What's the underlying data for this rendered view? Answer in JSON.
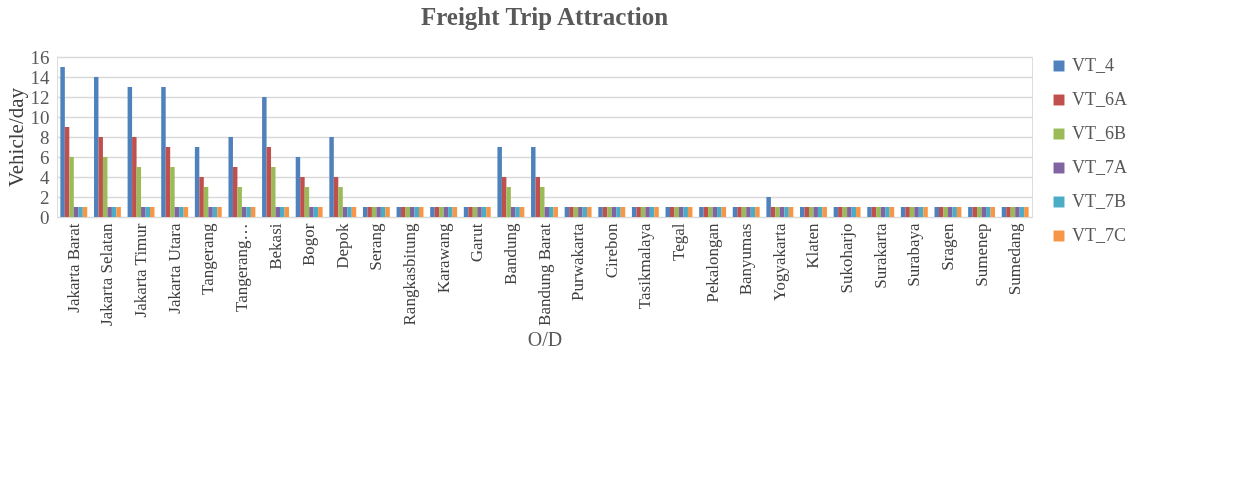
{
  "chart_data": {
    "type": "bar",
    "title": "Freight Trip Attraction",
    "xlabel": "O/D",
    "ylabel": "Vehicle/day",
    "categories": [
      "Jakarta Barat",
      "Jakarta Selatan",
      "Jakarta Timur",
      "Jakarta Utara",
      "Tangerang",
      "Tangerang…",
      "Bekasi",
      "Bogor",
      "Depok",
      "Serang",
      "Rangkasbitung",
      "Karawang",
      "Garut",
      "Bandung",
      "Bandung Barat",
      "Purwakarta",
      "Cirebon",
      "Tasikmalaya",
      "Tegal",
      "Pekalongan",
      "Banyumas",
      "Yogyakarta",
      "Klaten",
      "Sukoharjo",
      "Surakarta",
      "Surabaya",
      "Sragen",
      "Sumenep",
      "Sumedang"
    ],
    "series": [
      {
        "name": "VT_4",
        "color": "#4f81bd",
        "values": [
          15,
          14,
          13,
          13,
          7,
          8,
          12,
          6,
          8,
          1,
          1,
          1,
          1,
          7,
          7,
          1,
          1,
          1,
          1,
          1,
          1,
          2,
          1,
          1,
          1,
          1,
          1,
          1,
          1
        ]
      },
      {
        "name": "VT_6A",
        "color": "#c0504d",
        "values": [
          9,
          8,
          8,
          7,
          4,
          5,
          7,
          4,
          4,
          1,
          1,
          1,
          1,
          4,
          4,
          1,
          1,
          1,
          1,
          1,
          1,
          1,
          1,
          1,
          1,
          1,
          1,
          1,
          1
        ]
      },
      {
        "name": "VT_6B",
        "color": "#9bbb59",
        "values": [
          6,
          6,
          5,
          5,
          3,
          3,
          5,
          3,
          3,
          1,
          1,
          1,
          1,
          3,
          3,
          1,
          1,
          1,
          1,
          1,
          1,
          1,
          1,
          1,
          1,
          1,
          1,
          1,
          1
        ]
      },
      {
        "name": "VT_7A",
        "color": "#8064a2",
        "values": [
          1,
          1,
          1,
          1,
          1,
          1,
          1,
          1,
          1,
          1,
          1,
          1,
          1,
          1,
          1,
          1,
          1,
          1,
          1,
          1,
          1,
          1,
          1,
          1,
          1,
          1,
          1,
          1,
          1
        ]
      },
      {
        "name": "VT_7B",
        "color": "#4bacc6",
        "values": [
          1,
          1,
          1,
          1,
          1,
          1,
          1,
          1,
          1,
          1,
          1,
          1,
          1,
          1,
          1,
          1,
          1,
          1,
          1,
          1,
          1,
          1,
          1,
          1,
          1,
          1,
          1,
          1,
          1
        ]
      },
      {
        "name": "VT_7C",
        "color": "#f79646",
        "values": [
          1,
          1,
          1,
          1,
          1,
          1,
          1,
          1,
          1,
          1,
          1,
          1,
          1,
          1,
          1,
          1,
          1,
          1,
          1,
          1,
          1,
          1,
          1,
          1,
          1,
          1,
          1,
          1,
          1
        ]
      }
    ],
    "ylim": [
      0,
      16
    ],
    "yticks": [
      0,
      2,
      4,
      6,
      8,
      10,
      12,
      14,
      16
    ],
    "grid": "y",
    "legend": "right"
  }
}
